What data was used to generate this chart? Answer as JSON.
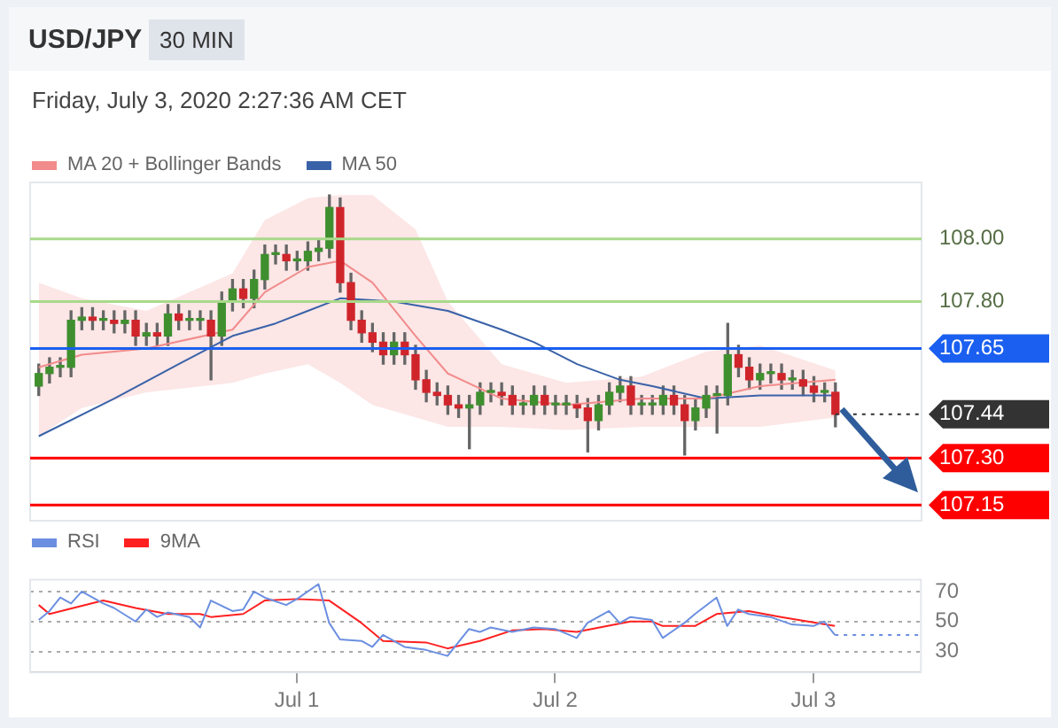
{
  "chart_data": [
    {
      "type": "candlestick",
      "title": "USD/JPY",
      "subtitle": "Friday, July 3, 2020 2:27:36 AM CET",
      "annotations": [
        "30 MIN"
      ],
      "x": [
        "2020-06-30T00:00",
        "2020-06-30T01:00",
        "2020-06-30T02:00",
        "2020-06-30T03:00",
        "2020-06-30T04:00",
        "2020-06-30T05:00",
        "2020-06-30T06:00",
        "2020-06-30T07:00",
        "2020-06-30T08:00",
        "2020-06-30T09:00",
        "2020-06-30T10:00",
        "2020-06-30T11:00",
        "2020-06-30T12:00",
        "2020-06-30T13:00",
        "2020-06-30T14:00",
        "2020-06-30T15:00",
        "2020-06-30T16:00",
        "2020-06-30T17:00",
        "2020-06-30T18:00",
        "2020-06-30T19:00",
        "2020-06-30T20:00",
        "2020-06-30T21:00",
        "2020-06-30T22:00",
        "2020-06-30T23:00",
        "2020-07-01T00:00",
        "2020-07-01T01:00",
        "2020-07-01T02:00",
        "2020-07-01T03:00",
        "2020-07-01T04:00",
        "2020-07-01T05:00",
        "2020-07-01T06:00",
        "2020-07-01T07:00",
        "2020-07-01T08:00",
        "2020-07-01T09:00",
        "2020-07-01T10:00",
        "2020-07-01T11:00",
        "2020-07-01T12:00",
        "2020-07-01T13:00",
        "2020-07-01T14:00",
        "2020-07-01T15:00",
        "2020-07-01T16:00",
        "2020-07-01T17:00",
        "2020-07-01T18:00",
        "2020-07-01T19:00",
        "2020-07-01T20:00",
        "2020-07-01T21:00",
        "2020-07-01T22:00",
        "2020-07-01T23:00",
        "2020-07-02T00:00",
        "2020-07-02T01:00",
        "2020-07-02T02:00",
        "2020-07-02T03:00",
        "2020-07-02T04:00",
        "2020-07-02T05:00",
        "2020-07-02T06:00",
        "2020-07-02T07:00",
        "2020-07-02T08:00",
        "2020-07-02T09:00",
        "2020-07-02T10:00",
        "2020-07-02T11:00",
        "2020-07-02T12:00",
        "2020-07-02T13:00",
        "2020-07-02T14:00",
        "2020-07-02T15:00",
        "2020-07-02T16:00",
        "2020-07-02T17:00",
        "2020-07-02T18:00",
        "2020-07-02T19:00",
        "2020-07-02T20:00",
        "2020-07-02T21:00",
        "2020-07-02T22:00",
        "2020-07-02T23:00",
        "2020-07-03T00:00",
        "2020-07-03T01:00",
        "2020-07-03T02:00"
      ],
      "ohlc": [
        [
          107.53,
          107.6,
          107.5,
          107.57
        ],
        [
          107.57,
          107.62,
          107.54,
          107.59
        ],
        [
          107.59,
          107.62,
          107.56,
          107.59
        ],
        [
          107.59,
          107.77,
          107.56,
          107.74
        ],
        [
          107.74,
          107.78,
          107.71,
          107.75
        ],
        [
          107.75,
          107.78,
          107.71,
          107.74
        ],
        [
          107.74,
          107.77,
          107.71,
          107.74
        ],
        [
          107.74,
          107.77,
          107.7,
          107.73
        ],
        [
          107.73,
          107.77,
          107.7,
          107.74
        ],
        [
          107.74,
          107.77,
          107.66,
          107.69
        ],
        [
          107.69,
          107.73,
          107.66,
          107.7
        ],
        [
          107.7,
          107.73,
          107.66,
          107.69
        ],
        [
          107.69,
          107.79,
          107.66,
          107.76
        ],
        [
          107.76,
          107.79,
          107.71,
          107.74
        ],
        [
          107.74,
          107.77,
          107.71,
          107.74
        ],
        [
          107.74,
          107.77,
          107.71,
          107.74
        ],
        [
          107.74,
          107.77,
          107.55,
          107.69
        ],
        [
          107.69,
          107.83,
          107.66,
          107.8
        ],
        [
          107.8,
          107.87,
          107.77,
          107.84
        ],
        [
          107.84,
          107.87,
          107.78,
          107.81
        ],
        [
          107.81,
          107.9,
          107.78,
          107.87
        ],
        [
          107.87,
          107.98,
          107.84,
          107.95
        ],
        [
          107.95,
          107.98,
          107.92,
          107.95
        ],
        [
          107.95,
          107.98,
          107.9,
          107.93
        ],
        [
          107.93,
          107.96,
          107.9,
          107.93
        ],
        [
          107.93,
          107.99,
          107.9,
          107.96
        ],
        [
          107.96,
          108.0,
          107.93,
          107.97
        ],
        [
          107.97,
          108.14,
          107.94,
          108.1
        ],
        [
          108.1,
          108.13,
          107.83,
          107.86
        ],
        [
          107.86,
          107.89,
          107.71,
          107.74
        ],
        [
          107.74,
          107.77,
          107.67,
          107.7
        ],
        [
          107.7,
          107.73,
          107.64,
          107.67
        ],
        [
          107.67,
          107.7,
          107.6,
          107.63
        ],
        [
          107.63,
          107.7,
          107.6,
          107.67
        ],
        [
          107.67,
          107.7,
          107.6,
          107.63
        ],
        [
          107.63,
          107.66,
          107.52,
          107.55
        ],
        [
          107.55,
          107.58,
          107.48,
          107.51
        ],
        [
          107.51,
          107.54,
          107.47,
          107.5
        ],
        [
          107.5,
          107.53,
          107.44,
          107.47
        ],
        [
          107.47,
          107.5,
          107.43,
          107.46
        ],
        [
          107.46,
          107.5,
          107.33,
          107.47
        ],
        [
          107.47,
          107.54,
          107.44,
          107.51
        ],
        [
          107.51,
          107.54,
          107.48,
          107.51
        ],
        [
          107.51,
          107.54,
          107.47,
          107.5
        ],
        [
          107.5,
          107.53,
          107.44,
          107.47
        ],
        [
          107.47,
          107.5,
          107.44,
          107.47
        ],
        [
          107.47,
          107.53,
          107.44,
          107.5
        ],
        [
          107.5,
          107.53,
          107.44,
          107.47
        ],
        [
          107.47,
          107.5,
          107.44,
          107.47
        ],
        [
          107.47,
          107.5,
          107.44,
          107.47
        ],
        [
          107.47,
          107.5,
          107.43,
          107.46
        ],
        [
          107.46,
          107.49,
          107.32,
          107.42
        ],
        [
          107.42,
          107.5,
          107.39,
          107.47
        ],
        [
          107.47,
          107.54,
          107.44,
          107.51
        ],
        [
          107.51,
          107.56,
          107.48,
          107.53
        ],
        [
          107.53,
          107.56,
          107.44,
          107.47
        ],
        [
          107.47,
          107.5,
          107.44,
          107.47
        ],
        [
          107.47,
          107.5,
          107.44,
          107.47
        ],
        [
          107.47,
          107.53,
          107.44,
          107.5
        ],
        [
          107.5,
          107.53,
          107.44,
          107.47
        ],
        [
          107.47,
          107.5,
          107.31,
          107.42
        ],
        [
          107.42,
          107.49,
          107.39,
          107.46
        ],
        [
          107.46,
          107.53,
          107.43,
          107.5
        ],
        [
          107.5,
          107.53,
          107.38,
          107.5
        ],
        [
          107.5,
          107.73,
          107.47,
          107.63
        ],
        [
          107.63,
          107.66,
          107.56,
          107.59
        ],
        [
          107.59,
          107.62,
          107.52,
          107.55
        ],
        [
          107.55,
          107.6,
          107.52,
          107.57
        ],
        [
          107.57,
          107.6,
          107.54,
          107.57
        ],
        [
          107.57,
          107.6,
          107.52,
          107.55
        ],
        [
          107.55,
          107.58,
          107.52,
          107.55
        ],
        [
          107.55,
          107.58,
          107.5,
          107.53
        ],
        [
          107.53,
          107.56,
          107.48,
          107.51
        ],
        [
          107.51,
          107.54,
          107.48,
          107.51
        ],
        [
          107.51,
          107.54,
          107.4,
          107.44
        ]
      ],
      "series": [
        {
          "name": "MA 20 + Bollinger Bands",
          "type": "line",
          "color": "#f28b8b",
          "x": [
            "2020-06-30T00:00",
            "2020-06-30T04:00",
            "2020-06-30T10:00",
            "2020-06-30T18:00",
            "2020-06-30T21:00",
            "2020-07-01T01:00",
            "2020-07-01T04:00",
            "2020-07-01T07:00",
            "2020-07-01T11:00",
            "2020-07-01T14:00",
            "2020-07-01T19:00",
            "2020-07-02T01:00",
            "2020-07-02T08:00",
            "2020-07-02T14:00",
            "2020-07-02T19:00",
            "2020-07-03T02:00"
          ],
          "values": [
            107.59,
            107.63,
            107.65,
            107.71,
            107.83,
            107.91,
            107.93,
            107.86,
            107.69,
            107.57,
            107.49,
            107.47,
            107.49,
            107.49,
            107.53,
            107.55
          ],
          "lower": [
            107.37,
            107.46,
            107.51,
            107.54,
            107.57,
            107.6,
            107.54,
            107.47,
            107.43,
            107.4,
            107.4,
            107.39,
            107.4,
            107.4,
            107.4,
            107.43
          ],
          "upper": [
            107.86,
            107.81,
            107.77,
            107.89,
            108.06,
            108.13,
            108.14,
            108.14,
            108.03,
            107.8,
            107.6,
            107.54,
            107.56,
            107.64,
            107.66,
            107.58
          ]
        },
        {
          "name": "MA 50",
          "type": "line",
          "color": "#3a62a8",
          "x": [
            "2020-06-30T00:00",
            "2020-06-30T07:00",
            "2020-06-30T13:00",
            "2020-06-30T18:00",
            "2020-06-30T22:00",
            "2020-07-01T01:00",
            "2020-07-01T04:00",
            "2020-07-01T09:00",
            "2020-07-01T14:00",
            "2020-07-01T19:00",
            "2020-07-01T22:00",
            "2020-07-02T02:00",
            "2020-07-02T06:00",
            "2020-07-02T09:00",
            "2020-07-02T14:00",
            "2020-07-02T19:00",
            "2020-07-03T02:00"
          ],
          "values": [
            107.37,
            107.49,
            107.6,
            107.69,
            107.73,
            107.77,
            107.81,
            107.8,
            107.77,
            107.71,
            107.67,
            107.6,
            107.55,
            107.53,
            107.49,
            107.5,
            107.5
          ]
        }
      ],
      "ref_lines": [
        {
          "axis": "y",
          "value": 108.0,
          "label": "108.00",
          "color": "#a9d98a"
        },
        {
          "axis": "y",
          "value": 107.8,
          "label": "107.80",
          "color": "#a9d98a"
        },
        {
          "axis": "y",
          "value": 107.65,
          "label": "107.65",
          "color": "#1a5ff0"
        },
        {
          "axis": "y",
          "value": 107.44,
          "label": "107.44",
          "color": "#333333",
          "line_style": "dotted"
        },
        {
          "axis": "y",
          "value": 107.3,
          "label": "107.30",
          "color": "#ff0000"
        },
        {
          "axis": "y",
          "value": 107.15,
          "label": "107.15",
          "color": "#ff0000"
        }
      ],
      "xlim": [
        "2020-06-29T23:12",
        "2020-07-03T10:00"
      ],
      "ylim": [
        107.1,
        108.18
      ],
      "legend": "top left",
      "tick_labels": false
    },
    {
      "type": "line",
      "series": [
        {
          "name": "RSI",
          "color": "#6b8fe0",
          "x": [
            "2020-06-30T00:00",
            "2020-06-30T01:00",
            "2020-06-30T02:00",
            "2020-06-30T03:00",
            "2020-06-30T04:00",
            "2020-06-30T06:00",
            "2020-06-30T07:00",
            "2020-06-30T09:00",
            "2020-06-30T10:00",
            "2020-06-30T11:00",
            "2020-06-30T12:00",
            "2020-06-30T14:00",
            "2020-06-30T15:00",
            "2020-06-30T16:00",
            "2020-06-30T18:00",
            "2020-06-30T19:00",
            "2020-06-30T20:00",
            "2020-06-30T21:00",
            "2020-06-30T23:00",
            "2020-07-01T00:00",
            "2020-07-01T02:00",
            "2020-07-01T03:00",
            "2020-07-01T04:00",
            "2020-07-01T06:00",
            "2020-07-01T07:00",
            "2020-07-01T08:00",
            "2020-07-01T10:00",
            "2020-07-01T12:00",
            "2020-07-01T14:00",
            "2020-07-01T16:00",
            "2020-07-01T17:00",
            "2020-07-01T18:00",
            "2020-07-01T20:00",
            "2020-07-01T22:00",
            "2020-07-02T00:00",
            "2020-07-02T02:00",
            "2020-07-02T03:00",
            "2020-07-02T05:00",
            "2020-07-02T06:00",
            "2020-07-02T07:00",
            "2020-07-02T09:00",
            "2020-07-02T10:00",
            "2020-07-02T12:00",
            "2020-07-02T13:00",
            "2020-07-02T15:00",
            "2020-07-02T16:00",
            "2020-07-02T17:00",
            "2020-07-02T18:00",
            "2020-07-02T20:00",
            "2020-07-02T22:00",
            "2020-07-03T00:00",
            "2020-07-03T01:00",
            "2020-07-03T02:00"
          ],
          "values": [
            51,
            57,
            66,
            62,
            70,
            62,
            59,
            50,
            58,
            53,
            56,
            53,
            46,
            64,
            57,
            58,
            70,
            66,
            61,
            65,
            75,
            49,
            38,
            37,
            33,
            41,
            33,
            31,
            27,
            45,
            43,
            46,
            43,
            46,
            45,
            39,
            49,
            57,
            49,
            53,
            51,
            39,
            49,
            55,
            66,
            47,
            58,
            55,
            53,
            48,
            47,
            50,
            41
          ]
        },
        {
          "name": "9MA",
          "color": "#ff2020",
          "x": [
            "2020-06-30T00:00",
            "2020-06-30T01:00",
            "2020-06-30T06:00",
            "2020-06-30T09:00",
            "2020-06-30T12:00",
            "2020-06-30T15:00",
            "2020-06-30T16:00",
            "2020-06-30T19:00",
            "2020-06-30T21:00",
            "2020-07-01T00:00",
            "2020-07-01T03:00",
            "2020-07-01T06:00",
            "2020-07-01T08:00",
            "2020-07-01T12:00",
            "2020-07-01T14:00",
            "2020-07-01T17:00",
            "2020-07-01T20:00",
            "2020-07-01T23:00",
            "2020-07-02T02:00",
            "2020-07-02T07:00",
            "2020-07-02T09:00",
            "2020-07-02T10:00",
            "2020-07-02T13:00",
            "2020-07-02T15:00",
            "2020-07-02T18:00",
            "2020-07-02T21:00",
            "2020-07-03T02:00"
          ],
          "values": [
            61,
            55,
            64,
            59,
            55,
            55,
            53,
            55,
            64,
            65,
            64,
            49,
            37,
            36,
            32,
            37,
            44,
            45,
            43,
            50,
            50,
            47,
            47,
            55,
            57,
            53,
            47
          ]
        }
      ],
      "ref_lines": [
        {
          "axis": "y",
          "value": 41,
          "color": "#6b8fe0",
          "line_style": "dotted"
        }
      ],
      "xlim": [
        "2020-06-29T23:12",
        "2020-07-03T10:00"
      ],
      "xticks": [
        {
          "value": "2020-07-01",
          "label": "Jul 1"
        },
        {
          "value": "2020-07-02",
          "label": "Jul 2"
        },
        {
          "value": "2020-07-03",
          "label": "Jul 3"
        }
      ],
      "ylim": [
        16,
        78
      ],
      "yticks": [
        30,
        50,
        70
      ],
      "grid": "y",
      "legend": "top left"
    }
  ]
}
